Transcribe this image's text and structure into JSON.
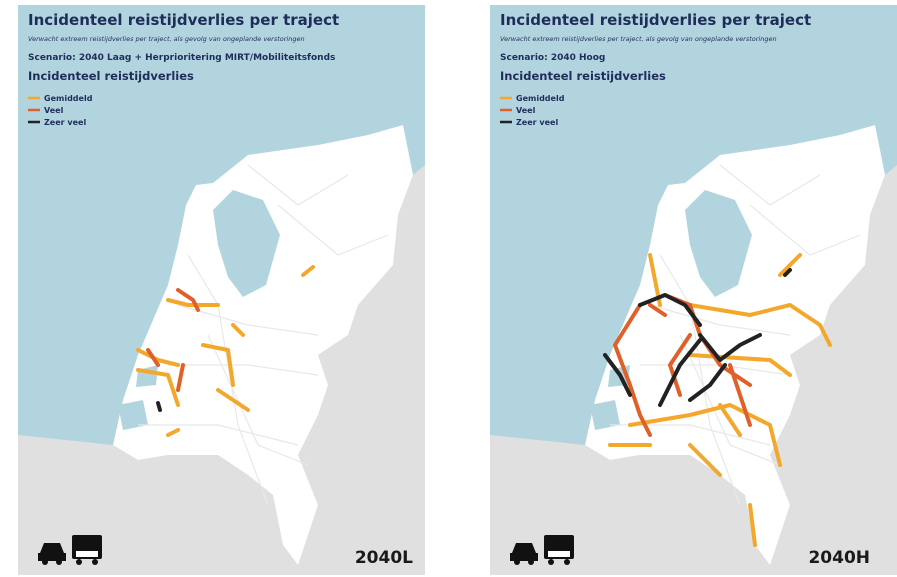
{
  "panels": [
    {
      "title": "Incidenteel reistijdverlies per traject",
      "subtitle": "Verwacht extreem reistijdverlies per traject, als gevolg van ongeplande verstoringen",
      "scenario": "Scenario: 2040 Laag + Herprioritering MIRT/Mobiliteitsfonds",
      "legend_title": "Incidenteel reistijdverlies",
      "legend": [
        "Gemiddeld",
        "Veel",
        "Zeer veel"
      ],
      "label": "2040L"
    },
    {
      "title": "Incidenteel reistijdverlies per traject",
      "subtitle": "Verwacht extreem reistijdverlies per traject, als gevolg van ongeplande verstoringen",
      "scenario": "Scenario: 2040 Hoog",
      "legend_title": "Incidenteel reistijdverlies",
      "legend": [
        "Gemiddeld",
        "Veel",
        "Zeer veel"
      ],
      "label": "2040H"
    }
  ]
}
